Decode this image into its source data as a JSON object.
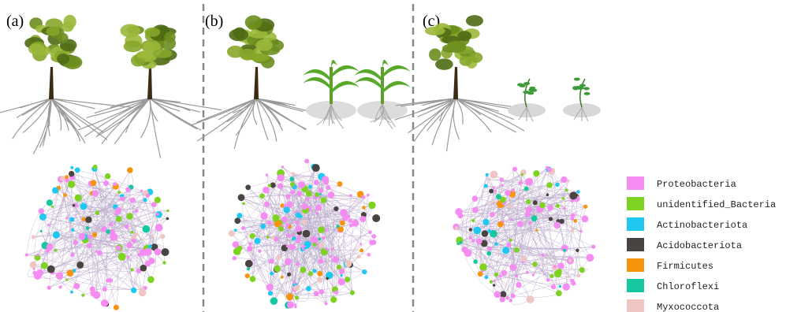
{
  "panels": [
    {
      "label": "(a)"
    },
    {
      "label": "(b)"
    },
    {
      "label": "(c)"
    }
  ],
  "legend": [
    {
      "name": "Proteobacteria",
      "color": "#f48cf2"
    },
    {
      "name": "unidentified_Bacteria",
      "color": "#7ed321"
    },
    {
      "name": "Actinobacteriota",
      "color": "#1ec8f0"
    },
    {
      "name": "Acidobacteriota",
      "color": "#4a4440"
    },
    {
      "name": "Firmicutes",
      "color": "#f7940e"
    },
    {
      "name": "Chloroflexi",
      "color": "#16c8a0"
    },
    {
      "name": "Myxococcota",
      "color": "#efc6c4"
    }
  ]
}
